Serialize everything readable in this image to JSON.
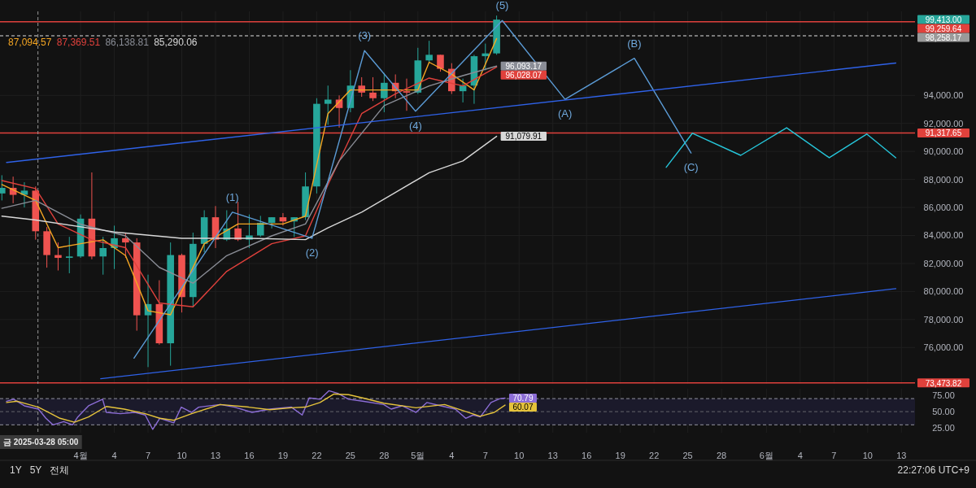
{
  "chart_data": [
    {
      "type": "candlestick",
      "grid": true,
      "tick_labels": "y",
      "xlim": [
        "2025-03-24T20:00",
        "2025-06-14T05:00"
      ],
      "ylim": [
        73400,
        100000
      ],
      "xticks": [
        {
          "value": "2025-04-01",
          "label": null
        },
        {
          "value": "2025-04-04",
          "label": null
        },
        {
          "value": "2025-04-07",
          "label": null
        },
        {
          "value": "2025-04-10",
          "label": null
        },
        {
          "value": "2025-04-13",
          "label": null
        },
        {
          "value": "2025-04-16",
          "label": null
        },
        {
          "value": "2025-04-19",
          "label": null
        },
        {
          "value": "2025-04-22",
          "label": null
        },
        {
          "value": "2025-04-25",
          "label": null
        },
        {
          "value": "2025-04-28",
          "label": null
        },
        {
          "value": "2025-05-01",
          "label": null
        },
        {
          "value": "2025-05-04",
          "label": null
        },
        {
          "value": "2025-05-07",
          "label": null
        },
        {
          "value": "2025-05-10",
          "label": null
        },
        {
          "value": "2025-05-13",
          "label": null
        },
        {
          "value": "2025-05-16",
          "label": null
        },
        {
          "value": "2025-05-19",
          "label": null
        },
        {
          "value": "2025-05-22",
          "label": null
        },
        {
          "value": "2025-05-25",
          "label": null
        },
        {
          "value": "2025-05-28",
          "label": null
        },
        {
          "value": "2025-06-01",
          "label": null
        },
        {
          "value": "2025-06-04",
          "label": null
        },
        {
          "value": "2025-06-07",
          "label": null
        },
        {
          "value": "2025-06-10",
          "label": null
        },
        {
          "value": "2025-06-13",
          "label": null
        }
      ],
      "yticks": [
        {
          "value": 76000,
          "label": "76,000.00"
        },
        {
          "value": 78000,
          "label": "78,000.00"
        },
        {
          "value": 80000,
          "label": "80,000.00"
        },
        {
          "value": 82000,
          "label": "82,000.00"
        },
        {
          "value": 84000,
          "label": "84,000.00"
        },
        {
          "value": 86000,
          "label": "86,000.00"
        },
        {
          "value": 88000,
          "label": "88,000.00"
        },
        {
          "value": 90000,
          "label": "90,000.00"
        },
        {
          "value": 92000,
          "label": "92,000.00"
        },
        {
          "value": 94000,
          "label": "94,000.00"
        }
      ],
      "x": [
        "2025-03-25",
        "2025-03-26",
        "2025-03-27",
        "2025-03-28",
        "2025-03-29",
        "2025-03-30",
        "2025-03-31",
        "2025-04-01",
        "2025-04-02",
        "2025-04-03",
        "2025-04-04",
        "2025-04-05",
        "2025-04-06",
        "2025-04-07",
        "2025-04-08",
        "2025-04-09",
        "2025-04-10",
        "2025-04-11",
        "2025-04-12",
        "2025-04-13",
        "2025-04-14",
        "2025-04-15",
        "2025-04-16",
        "2025-04-17",
        "2025-04-18",
        "2025-04-19",
        "2025-04-20",
        "2025-04-21",
        "2025-04-22",
        "2025-04-23",
        "2025-04-24",
        "2025-04-25",
        "2025-04-26",
        "2025-04-27",
        "2025-04-28",
        "2025-04-29",
        "2025-04-30",
        "2025-05-01",
        "2025-05-02",
        "2025-05-03",
        "2025-05-04",
        "2025-05-05",
        "2025-05-06",
        "2025-05-07",
        "2025-05-08"
      ],
      "ohlc": [
        [
          87000,
          88300,
          86500,
          87400
        ],
        [
          87400,
          88200,
          86300,
          86900
        ],
        [
          86900,
          87800,
          86000,
          87200
        ],
        [
          87200,
          87500,
          83700,
          84300
        ],
        [
          84300,
          84600,
          81700,
          82600
        ],
        [
          82600,
          83500,
          81500,
          82400
        ],
        [
          82400,
          83900,
          81300,
          82500
        ],
        [
          82500,
          85500,
          82400,
          85200
        ],
        [
          85200,
          88500,
          82300,
          82500
        ],
        [
          82500,
          83900,
          81200,
          83100
        ],
        [
          83100,
          84700,
          81600,
          83800
        ],
        [
          83800,
          84200,
          82400,
          83500
        ],
        [
          83500,
          83800,
          77200,
          78300
        ],
        [
          78300,
          81200,
          74600,
          79100
        ],
        [
          79100,
          80800,
          76200,
          76300
        ],
        [
          76300,
          83500,
          74700,
          82600
        ],
        [
          82600,
          82700,
          78500,
          79600
        ],
        [
          79600,
          84200,
          78900,
          83400
        ],
        [
          83400,
          85800,
          82800,
          85300
        ],
        [
          85300,
          86100,
          83100,
          83700
        ],
        [
          83700,
          85800,
          83600,
          84500
        ],
        [
          84500,
          86400,
          83600,
          83700
        ],
        [
          83700,
          85500,
          83100,
          84000
        ],
        [
          84000,
          85400,
          83900,
          84900
        ],
        [
          84900,
          85300,
          84500,
          85300
        ],
        [
          85300,
          85600,
          84700,
          85000
        ],
        [
          85000,
          85300,
          83900,
          85300
        ],
        [
          85300,
          88500,
          85100,
          87500
        ],
        [
          87500,
          93800,
          87000,
          93400
        ],
        [
          93400,
          94700,
          91900,
          93700
        ],
        [
          93700,
          94000,
          91700,
          93100
        ],
        [
          93100,
          95800,
          92800,
          94700
        ],
        [
          94700,
          95300,
          93900,
          94200
        ],
        [
          94200,
          95300,
          93600,
          93800
        ],
        [
          93800,
          95600,
          92800,
          94900
        ],
        [
          94900,
          95500,
          93800,
          94300
        ],
        [
          94300,
          95200,
          92900,
          94200
        ],
        [
          94200,
          97400,
          94100,
          96500
        ],
        [
          96500,
          97900,
          96300,
          96900
        ],
        [
          96900,
          96900,
          95700,
          95900
        ],
        [
          95900,
          96300,
          94100,
          94300
        ],
        [
          94300,
          95200,
          93500,
          94700
        ],
        [
          94700,
          96900,
          93400,
          96800
        ],
        [
          96800,
          97700,
          95800,
          97000
        ],
        [
          97000,
          99700,
          96900,
          99413
        ]
      ],
      "value_labels": [
        null,
        null,
        null,
        null,
        null,
        null,
        null,
        null,
        null,
        null,
        null,
        null,
        null,
        null,
        null,
        null,
        null,
        null,
        null,
        null,
        null,
        null,
        null,
        null,
        null,
        null,
        null,
        null,
        null,
        null,
        null,
        null,
        null,
        null,
        null,
        null,
        null,
        null,
        null,
        null,
        null,
        null,
        null,
        null,
        "99,413.00"
      ],
      "series": [
        {
          "type": "line",
          "color": "#f5a623",
          "x": [
            "2025-03-25",
            "2025-03-28",
            "2025-03-30",
            "2025-04-01",
            "2025-04-03",
            "2025-04-05",
            "2025-04-07",
            "2025-04-09",
            "2025-04-12",
            "2025-04-15",
            "2025-04-19",
            "2025-04-21",
            "2025-04-23",
            "2025-04-25",
            "2025-04-28",
            "2025-05-01",
            "2025-05-02",
            "2025-05-04",
            "2025-05-06",
            "2025-05-08"
          ],
          "values": [
            87630,
            86500,
            83130,
            83410,
            83690,
            82560,
            78620,
            78340,
            83410,
            84820,
            84820,
            85380,
            92700,
            94390,
            94390,
            94390,
            96370,
            95520,
            94390,
            98060
          ]
        },
        {
          "type": "line",
          "color": "#e0413c",
          "x": [
            "2025-03-25",
            "2025-03-28",
            "2025-03-30",
            "2025-04-02",
            "2025-04-05",
            "2025-04-08",
            "2025-04-11",
            "2025-04-14",
            "2025-04-18",
            "2025-04-21",
            "2025-04-23",
            "2025-04-26",
            "2025-04-29",
            "2025-05-02",
            "2025-05-05",
            "2025-05-08"
          ],
          "values": [
            87920,
            87350,
            84820,
            83690,
            83130,
            79180,
            78900,
            81440,
            83410,
            83970,
            87630,
            92700,
            94110,
            95240,
            94680,
            96028.07
          ],
          "value_labels": [
            null,
            null,
            null,
            null,
            null,
            null,
            null,
            null,
            null,
            null,
            null,
            null,
            null,
            null,
            null,
            "96,028.07"
          ]
        },
        {
          "type": "line",
          "color": "#8a8d96",
          "x": [
            "2025-03-25",
            "2025-03-28",
            "2025-04-01",
            "2025-04-05",
            "2025-04-08",
            "2025-04-11",
            "2025-04-14",
            "2025-04-18",
            "2025-04-21",
            "2025-04-24",
            "2025-04-28",
            "2025-05-02",
            "2025-05-05",
            "2025-05-08"
          ],
          "values": [
            85940,
            86500,
            84800,
            83970,
            81720,
            80590,
            82560,
            83970,
            84820,
            89320,
            93270,
            94680,
            95410,
            96093.17
          ],
          "value_labels": [
            null,
            null,
            null,
            null,
            null,
            null,
            null,
            null,
            null,
            null,
            null,
            null,
            null,
            "96,093.17"
          ]
        },
        {
          "type": "line",
          "color": "#d8d8d8",
          "x": [
            "2025-03-25",
            "2025-03-28",
            "2025-04-04",
            "2025-04-10",
            "2025-04-16",
            "2025-04-21",
            "2025-04-23",
            "2025-04-26",
            "2025-04-29",
            "2025-05-02",
            "2025-05-05",
            "2025-05-08"
          ],
          "values": [
            85380,
            85100,
            84250,
            83800,
            83800,
            83700,
            84540,
            85660,
            87070,
            88480,
            89320,
            91079.91
          ],
          "value_labels": [
            null,
            null,
            null,
            null,
            null,
            null,
            null,
            null,
            null,
            null,
            null,
            "91,079.91"
          ]
        },
        {
          "type": "line",
          "color": "#5b9bd5",
          "x": [
            "2025-04-05T18:00",
            "2025-04-14T12:00",
            "2025-04-21T14:00",
            "2025-04-26T06:00",
            "2025-04-30T19:00",
            "2025-05-08T12:00",
            "2025-05-14T02:00",
            "2025-05-20T06:00",
            "2025-05-25T07:00"
          ],
          "values": [
            75240,
            85660,
            83800,
            97200,
            92870,
            99350,
            93720,
            96650,
            89890
          ]
        },
        {
          "type": "line",
          "color": "#26c6da",
          "x": [
            "2025-05-23T02:00",
            "2025-05-25T10:00",
            "2025-05-29T17:00",
            "2025-06-02T19:00",
            "2025-06-06T14:00",
            "2025-06-09T22:00",
            "2025-06-12T12:00"
          ],
          "values": [
            88870,
            91300,
            89720,
            91690,
            89550,
            91240,
            89550
          ]
        },
        {
          "type": "line",
          "color": "#2f62e8",
          "x": [
            "2025-03-25T10:00",
            "2025-06-12T12:00"
          ],
          "values": [
            89210,
            96310
          ]
        },
        {
          "type": "line",
          "color": "#2f62e8",
          "x": [
            "2025-04-02T19:00",
            "2025-06-12T12:00"
          ],
          "values": [
            73770,
            80200
          ]
        }
      ],
      "ref_lines": [
        {
          "axis": "y",
          "value": 99259.64,
          "label": "99,259.64",
          "color": "#e0413c"
        },
        {
          "axis": "y",
          "value": 91317.65,
          "label": "91,317.65",
          "color": "#e0413c"
        },
        {
          "axis": "y",
          "value": 73473.82,
          "label": "73,473.82",
          "color": "#e0413c"
        },
        {
          "axis": "y",
          "value": 98258.17,
          "label": "98,258.17",
          "color": "#9a9a9a",
          "line_style": "dashed"
        },
        {
          "axis": "x",
          "value": "2025-03-28T05:00",
          "color": "#9a9a9a",
          "line_style": "dashed"
        }
      ],
      "annotations": [
        "87,094.57",
        "87,369.51",
        "86,138.81",
        "85,290.06",
        {
          "text": "(1)",
          "x": "2025-04-14T12:00",
          "y": 85660
        },
        {
          "text": "(2)",
          "x": "2025-04-21T14:00",
          "y": 83800
        },
        {
          "text": "(3)",
          "x": "2025-04-26T06:00",
          "y": 97200
        },
        {
          "text": "(4)",
          "x": "2025-04-30T19:00",
          "y": 92870
        },
        {
          "text": "(5)",
          "x": "2025-05-08T12:00",
          "y": 99350
        },
        {
          "text": "(A)",
          "x": "2025-05-14T02:00",
          "y": 93720
        },
        {
          "text": "(B)",
          "x": "2025-05-20T06:00",
          "y": 96650
        },
        {
          "text": "(C)",
          "x": "2025-05-25T07:00",
          "y": 89890
        }
      ]
    },
    {
      "type": "line",
      "grid": "x",
      "xlim": [
        "2025-03-24T20:00",
        "2025-06-14T05:00"
      ],
      "ylim": [
        18,
        85
      ],
      "xticks": [
        {
          "value": "2025-04-01",
          "label": "4월"
        },
        {
          "value": "2025-04-04",
          "label": "4"
        },
        {
          "value": "2025-04-07",
          "label": "7"
        },
        {
          "value": "2025-04-10",
          "label": "10"
        },
        {
          "value": "2025-04-13",
          "label": "13"
        },
        {
          "value": "2025-04-16",
          "label": "16"
        },
        {
          "value": "2025-04-19",
          "label": "19"
        },
        {
          "value": "2025-04-22",
          "label": "22"
        },
        {
          "value": "2025-04-25",
          "label": "25"
        },
        {
          "value": "2025-04-28",
          "label": "28"
        },
        {
          "value": "2025-05-01",
          "label": "5월"
        },
        {
          "value": "2025-05-04",
          "label": "4"
        },
        {
          "value": "2025-05-07",
          "label": "7"
        },
        {
          "value": "2025-05-10",
          "label": "10"
        },
        {
          "value": "2025-05-13",
          "label": "13"
        },
        {
          "value": "2025-05-16",
          "label": "16"
        },
        {
          "value": "2025-05-19",
          "label": "19"
        },
        {
          "value": "2025-05-22",
          "label": "22"
        },
        {
          "value": "2025-05-25",
          "label": "25"
        },
        {
          "value": "2025-05-28",
          "label": "28"
        },
        {
          "value": "2025-06-01",
          "label": "6월"
        },
        {
          "value": "2025-06-04",
          "label": "4"
        },
        {
          "value": "2025-06-07",
          "label": "7"
        },
        {
          "value": "2025-06-10",
          "label": "10"
        },
        {
          "value": "2025-06-13",
          "label": "13"
        }
      ],
      "yticks": [
        {
          "value": 25,
          "label": "25.00"
        },
        {
          "value": 50,
          "label": "50.00"
        },
        {
          "value": 75,
          "label": "75.00"
        }
      ],
      "series": [
        {
          "color": "#8c6dd6",
          "x": [
            "2025-03-25T10:00",
            "2025-03-26T01:00",
            "2025-03-27T00:00",
            "2025-03-28T06:00",
            "2025-03-28T22:00",
            "2025-03-29T13:00",
            "2025-03-30T12:00",
            "2025-03-31T07:00",
            "2025-03-31T18:00",
            "2025-04-01T17:00",
            "2025-04-02T23:00",
            "2025-04-03T07:00",
            "2025-04-04T13:00",
            "2025-04-05T20:00",
            "2025-04-06T18:00",
            "2025-04-07T10:00",
            "2025-04-08T01:00",
            "2025-04-09T07:00",
            "2025-04-09T23:00",
            "2025-04-10T21:00",
            "2025-04-11T12:00",
            "2025-04-13T10:00",
            "2025-04-14T17:00",
            "2025-04-16T06:00",
            "2025-04-17T20:00",
            "2025-04-19T18:00",
            "2025-04-20T17:00",
            "2025-04-21T08:00",
            "2025-04-22T07:00",
            "2025-04-23T02:00",
            "2025-04-23T21:00",
            "2025-04-24T20:00",
            "2025-04-26T02:00",
            "2025-04-27T23:00",
            "2025-04-28T15:00",
            "2025-04-29T14:00",
            "2025-04-30T20:00",
            "2025-05-01T19:00",
            "2025-05-03T01:00",
            "2025-05-04T08:00",
            "2025-05-05T06:00",
            "2025-05-05T22:00",
            "2025-05-06T13:00",
            "2025-05-07T12:00",
            "2025-05-08T07:00",
            "2025-05-08T18:00"
          ],
          "values": [
            66,
            69,
            59,
            54,
            40,
            30,
            35,
            30,
            42,
            59,
            69,
            49,
            47,
            49,
            45,
            23,
            40,
            33,
            57,
            49,
            57,
            61,
            57,
            49,
            54,
            57,
            45,
            71,
            69,
            82,
            78,
            69,
            66,
            61,
            54,
            59,
            49,
            64,
            59,
            54,
            40,
            45,
            42,
            64,
            70,
            70.79
          ],
          "value_labels": [
            null,
            null,
            null,
            null,
            null,
            null,
            null,
            null,
            null,
            null,
            null,
            null,
            null,
            null,
            null,
            null,
            null,
            null,
            null,
            null,
            null,
            null,
            null,
            null,
            null,
            null,
            null,
            null,
            null,
            null,
            null,
            null,
            null,
            null,
            null,
            null,
            null,
            null,
            null,
            null,
            null,
            null,
            null,
            null,
            null,
            "70.79"
          ]
        },
        {
          "color": "#e5c33b",
          "x": [
            "2025-03-25T10:00",
            "2025-03-26T09:00",
            "2025-03-28T06:00",
            "2025-03-30T04:00",
            "2025-03-31T11:00",
            "2025-04-01T17:00",
            "2025-04-03T07:00",
            "2025-04-04T21:00",
            "2025-04-06T18:00",
            "2025-04-08T01:00",
            "2025-04-09T07:00",
            "2025-04-10T21:00",
            "2025-04-13T10:00",
            "2025-04-15T23:00",
            "2025-04-17T20:00",
            "2025-04-19T18:00",
            "2025-04-21T00:00",
            "2025-04-22T07:00",
            "2025-04-23T13:00",
            "2025-04-24T20:00",
            "2025-04-26T02:00",
            "2025-04-27T23:00",
            "2025-04-30T20:00",
            "2025-05-03T09:00",
            "2025-05-04T23:00",
            "2025-05-06T13:00",
            "2025-05-07T19:00",
            "2025-05-08T18:00"
          ],
          "values": [
            64,
            66,
            57,
            40,
            34,
            42,
            58,
            54,
            47,
            40,
            37,
            47,
            61,
            57,
            53,
            56,
            57,
            64,
            77,
            76,
            71,
            63,
            56,
            61,
            52,
            43,
            49,
            60.07
          ],
          "value_labels": [
            null,
            null,
            null,
            null,
            null,
            null,
            null,
            null,
            null,
            null,
            null,
            null,
            null,
            null,
            null,
            null,
            null,
            null,
            null,
            null,
            null,
            null,
            null,
            null,
            null,
            null,
            null,
            "60.07"
          ]
        }
      ],
      "bands": [
        {
          "axis": "y",
          "from": 30,
          "to": 70,
          "color": "#1b1a2b"
        }
      ],
      "ref_lines": [
        {
          "axis": "y",
          "value": 70,
          "color": "#7a7a85",
          "line_style": "dashed"
        },
        {
          "axis": "y",
          "value": 50,
          "color": "#55555f",
          "line_style": "dashed"
        },
        {
          "axis": "y",
          "value": 30,
          "color": "#7a7a85",
          "line_style": "dashed"
        },
        {
          "axis": "x",
          "value": "2025-03-28T05:00",
          "label": "금 2025-03-28  05:00",
          "color": "#9a9a9a",
          "line_style": "dashed"
        }
      ],
      "annotations": [
        "1Y",
        "5Y",
        "전체",
        "22:27:06 UTC+9"
      ]
    }
  ]
}
